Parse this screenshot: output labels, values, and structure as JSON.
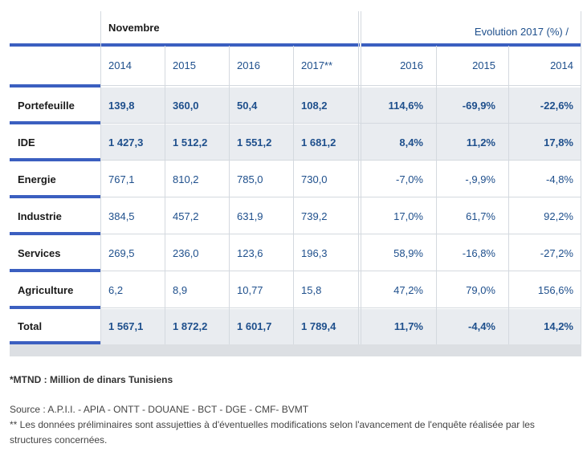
{
  "header": {
    "period": "Novembre",
    "evolution": "Evolution 2017 (%) /",
    "years_values": [
      "2014",
      "2015",
      "2016",
      "2017**"
    ],
    "years_evolution": [
      "2016",
      "2015",
      "2014"
    ]
  },
  "rows": [
    {
      "label": "Portefeuille",
      "values": [
        "139,8",
        "360,0",
        "50,4",
        "108,2"
      ],
      "evolution": [
        "114,6%",
        "-69,9%",
        "-22,6%"
      ]
    },
    {
      "label": "IDE",
      "values": [
        "1 427,3",
        "1 512,2",
        "1 551,2",
        "1 681,2"
      ],
      "evolution": [
        "8,4%",
        "11,2%",
        "17,8%"
      ]
    },
    {
      "label": "Energie",
      "values": [
        "767,1",
        "810,2",
        "785,0",
        "730,0"
      ],
      "evolution": [
        "-7,0%",
        "-,9,9%",
        "-4,8%"
      ]
    },
    {
      "label": "Industrie",
      "values": [
        "384,5",
        "457,2",
        "631,9",
        "739,2"
      ],
      "evolution": [
        "17,0%",
        "61,7%",
        "92,2%"
      ]
    },
    {
      "label": "Services",
      "values": [
        "269,5",
        "236,0",
        "123,6",
        "196,3"
      ],
      "evolution": [
        "58,9%",
        "-16,8%",
        "-27,2%"
      ]
    },
    {
      "label": "Agriculture",
      "values": [
        "6,2",
        "8,9",
        "10,77",
        "15,8"
      ],
      "evolution": [
        "47,2%",
        "79,0%",
        "156,6%"
      ]
    },
    {
      "label": "Total",
      "values": [
        "1 567,1",
        "1 872,2",
        "1 601,7",
        "1 789,4"
      ],
      "evolution": [
        "11,7%",
        "-4,4%",
        "14,2%"
      ]
    }
  ],
  "notes": {
    "unit": "*MTND : Million de dinars Tunisiens",
    "source": "Source : A.P.I.I. - APIA - ONTT - DOUANE - BCT - DGE - CMF- BVMT",
    "preliminary_line1": "** Les données préliminaires sont assujetties à d'éventuelles modifications selon l'avancement de l'enquête réalisée par les",
    "preliminary_line2": "structures concernées."
  },
  "colors": {
    "accent": "#3b5fc0",
    "text_blue": "#1e4f8c",
    "shade": "#e9ecf0"
  }
}
